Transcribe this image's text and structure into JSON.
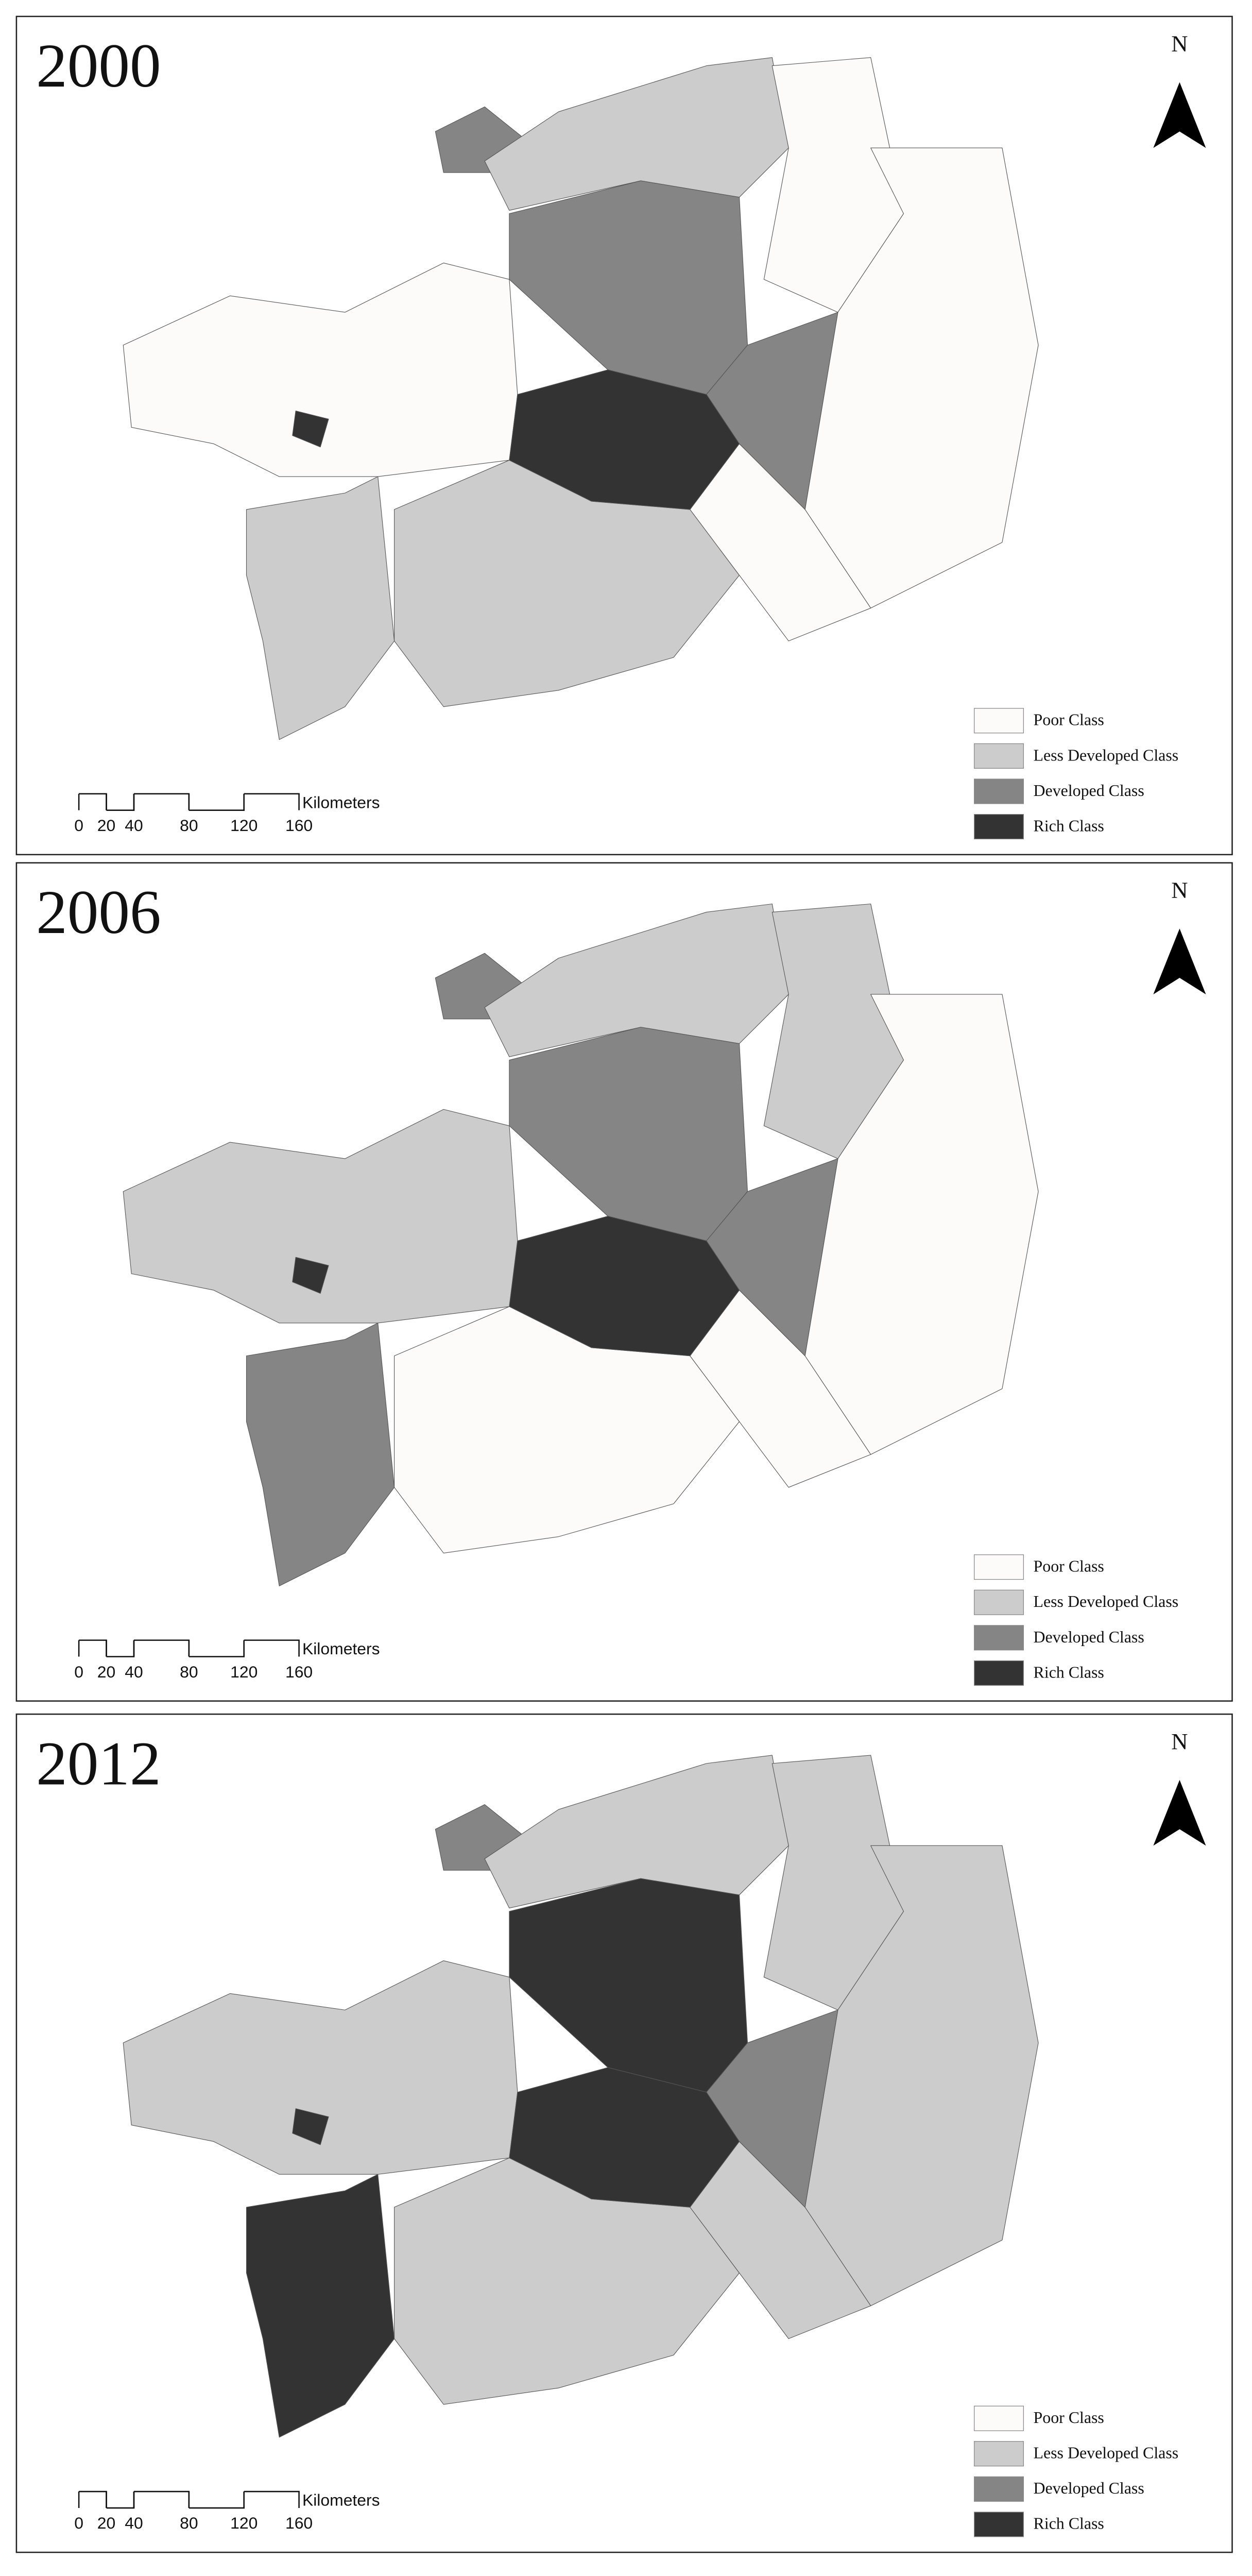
{
  "panels": [
    {
      "year": "2000"
    },
    {
      "year": "2006"
    },
    {
      "year": "2012"
    }
  ],
  "north": "N",
  "legend": [
    {
      "label": "Poor Class",
      "color": "#fdfafa"
    },
    {
      "label": "Less Developed Class",
      "color": "#cccccc"
    },
    {
      "label": "Developed Class",
      "color": "#858585"
    },
    {
      "label": "Rich Class",
      "color": "#333333"
    }
  ],
  "scale_bar": {
    "ticks": [
      0,
      20,
      40,
      80,
      120,
      160
    ],
    "unit": "Kilometers"
  }
}
